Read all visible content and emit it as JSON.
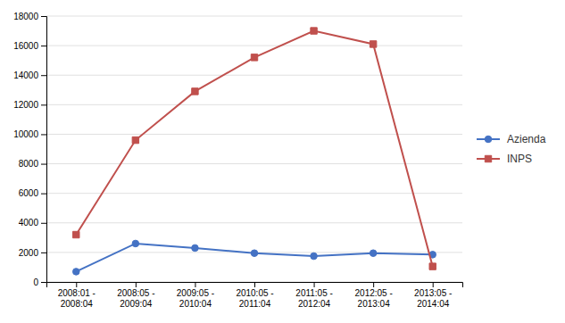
{
  "chart_data": {
    "type": "line",
    "categories": [
      "2008:01 -\n2008:04",
      "2008:05 -\n2009:04",
      "2009:05 -\n2010:04",
      "2010:05 -\n2011:04",
      "2011:05 -\n2012:04",
      "2012:05 -\n2013:04",
      "2013:05 -\n2014:04"
    ],
    "series": [
      {
        "name": "Azienda",
        "color": "#4472C4",
        "marker": "circle",
        "values": [
          700,
          2600,
          2300,
          1950,
          1750,
          1950,
          1850
        ]
      },
      {
        "name": "INPS",
        "color": "#C0504D",
        "marker": "square",
        "values": [
          3200,
          9600,
          12900,
          15200,
          17000,
          16100,
          1050
        ]
      }
    ],
    "ylim": [
      0,
      18000
    ],
    "yticks": [
      0,
      2000,
      4000,
      6000,
      8000,
      10000,
      12000,
      14000,
      16000,
      18000
    ],
    "grid": true,
    "legend": "right"
  }
}
